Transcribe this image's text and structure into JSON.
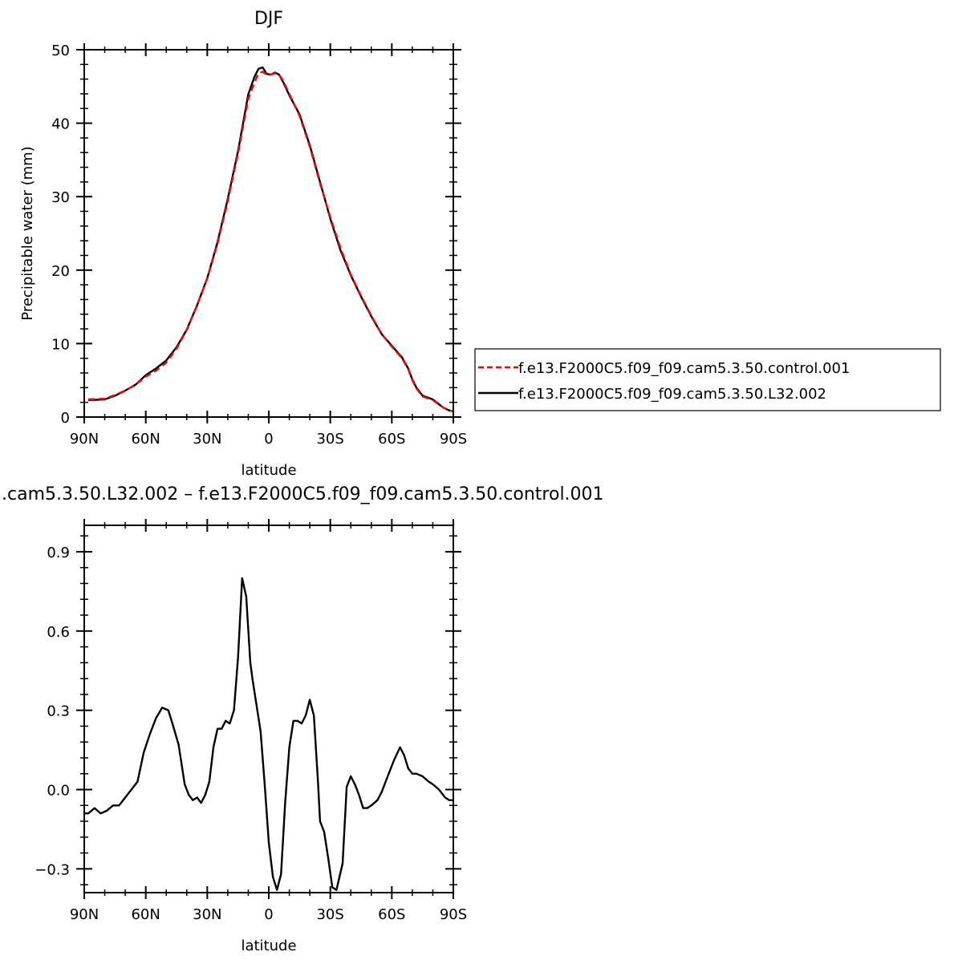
{
  "chart_data": [
    {
      "type": "line",
      "title": "DJF",
      "xlabel": "latitude",
      "ylabel": "Precipitable  water  (mm)",
      "xlim": [
        -90,
        90
      ],
      "ylim": [
        0,
        50
      ],
      "x_direction": "north-to-south",
      "xticks": [
        -90,
        -60,
        -30,
        0,
        30,
        60,
        90
      ],
      "xtick_labels": [
        "90N",
        "60N",
        "30N",
        "0",
        "30S",
        "60S",
        "90S"
      ],
      "yticks": [
        0,
        10,
        20,
        30,
        40,
        50
      ],
      "ytick_labels": [
        "0",
        "10",
        "20",
        "30",
        "40",
        "50"
      ],
      "legend_position": "right",
      "series": [
        {
          "name": "f.e13.F2000C5.f09_f09.cam5.3.50.control.001",
          "color": "#ff0000",
          "style": "dashed",
          "x": [
            -88,
            -80,
            -75,
            -70,
            -65,
            -60,
            -55,
            -50,
            -45,
            -40,
            -35,
            -30,
            -25,
            -20,
            -15,
            -10,
            -7,
            -5,
            -3,
            -1,
            1,
            3,
            5,
            7,
            10,
            15,
            20,
            25,
            30,
            35,
            40,
            45,
            50,
            55,
            60,
            65,
            68,
            70,
            72,
            75,
            80,
            85,
            88,
            90
          ],
          "y": [
            2.4,
            2.5,
            3.0,
            3.6,
            4.4,
            5.5,
            6.3,
            7.4,
            9.3,
            11.9,
            15.2,
            18.9,
            23.6,
            29.4,
            35.9,
            43.3,
            45.5,
            46.8,
            47.0,
            46.6,
            46.6,
            46.8,
            46.6,
            45.8,
            44.0,
            41.0,
            36.8,
            31.8,
            27.2,
            23.0,
            19.4,
            16.5,
            13.8,
            11.3,
            9.6,
            8.0,
            6.5,
            5.0,
            3.9,
            2.8,
            2.3,
            1.3,
            0.9,
            0.8
          ]
        },
        {
          "name": "f.e13.F2000C5.f09_f09.cam5.3.50.L32.002",
          "color": "#000000",
          "style": "solid",
          "x": [
            -88,
            -80,
            -75,
            -70,
            -65,
            -60,
            -55,
            -50,
            -45,
            -40,
            -35,
            -30,
            -25,
            -20,
            -15,
            -10,
            -7,
            -5,
            -3,
            -1,
            1,
            3,
            5,
            7,
            10,
            15,
            20,
            25,
            30,
            35,
            40,
            45,
            50,
            55,
            60,
            65,
            68,
            70,
            72,
            75,
            80,
            85,
            88,
            90
          ],
          "y": [
            2.3,
            2.4,
            2.9,
            3.6,
            4.4,
            5.7,
            6.6,
            7.7,
            9.5,
            11.9,
            15.2,
            18.9,
            23.8,
            29.7,
            36.2,
            43.9,
            46.3,
            47.4,
            47.6,
            46.7,
            46.6,
            46.9,
            46.6,
            45.6,
            43.8,
            41.2,
            37.0,
            32.0,
            27.0,
            22.7,
            19.3,
            16.4,
            13.7,
            11.3,
            9.7,
            8.1,
            6.6,
            5.1,
            4.0,
            2.9,
            2.4,
            1.3,
            0.9,
            0.8
          ]
        }
      ]
    },
    {
      "type": "line",
      "title": ".cam5.3.50.L32.002  –  f.e13.F2000C5.f09_f09.cam5.3.50.control.001",
      "xlabel": "latitude",
      "ylabel": "Precipitable  water  (mm)",
      "xlim": [
        -90,
        90
      ],
      "ylim": [
        -0.39,
        1.0
      ],
      "x_direction": "north-to-south",
      "xticks": [
        -90,
        -60,
        -30,
        0,
        30,
        60,
        90
      ],
      "xtick_labels": [
        "90N",
        "60N",
        "30N",
        "0",
        "30S",
        "60S",
        "90S"
      ],
      "yticks": [
        -0.3,
        0.0,
        0.3,
        0.6,
        0.9
      ],
      "ytick_labels": [
        "−0.3",
        "0.0",
        "0.3",
        "0.6",
        "0.9"
      ],
      "series": [
        {
          "color": "#000000",
          "style": "solid",
          "x": [
            -90,
            -88,
            -85,
            -82,
            -79,
            -76,
            -73,
            -70,
            -67,
            -64,
            -61,
            -58,
            -55,
            -52,
            -49,
            -47,
            -44,
            -41,
            -39,
            -37,
            -35,
            -33,
            -31,
            -29,
            -27,
            -25,
            -23,
            -21,
            -19,
            -17,
            -15,
            -13,
            -11,
            -9,
            -8,
            -6,
            -4,
            -2,
            0,
            2,
            4,
            6,
            8,
            10,
            12,
            14,
            16,
            18,
            20,
            22,
            24,
            25,
            27,
            29,
            31,
            33,
            36,
            38,
            40,
            42,
            44,
            46,
            48,
            50,
            53,
            55,
            58,
            61,
            64,
            66,
            68,
            70,
            72,
            75,
            78,
            80,
            83,
            86,
            88,
            90
          ],
          "y": [
            -0.09,
            -0.09,
            -0.07,
            -0.09,
            -0.08,
            -0.06,
            -0.06,
            -0.03,
            0.0,
            0.03,
            0.14,
            0.21,
            0.27,
            0.31,
            0.3,
            0.25,
            0.17,
            0.02,
            -0.02,
            -0.04,
            -0.03,
            -0.05,
            -0.02,
            0.03,
            0.16,
            0.23,
            0.23,
            0.26,
            0.25,
            0.3,
            0.5,
            0.8,
            0.73,
            0.48,
            0.42,
            0.32,
            0.22,
            0.02,
            -0.2,
            -0.33,
            -0.38,
            -0.32,
            -0.05,
            0.16,
            0.26,
            0.26,
            0.25,
            0.28,
            0.34,
            0.28,
            0.03,
            -0.12,
            -0.16,
            -0.26,
            -0.37,
            -0.38,
            -0.28,
            0.01,
            0.05,
            0.02,
            -0.02,
            -0.07,
            -0.07,
            -0.06,
            -0.04,
            -0.01,
            0.05,
            0.11,
            0.16,
            0.13,
            0.08,
            0.06,
            0.06,
            0.05,
            0.03,
            0.02,
            0.0,
            -0.03,
            -0.04,
            -0.04
          ]
        }
      ]
    }
  ]
}
